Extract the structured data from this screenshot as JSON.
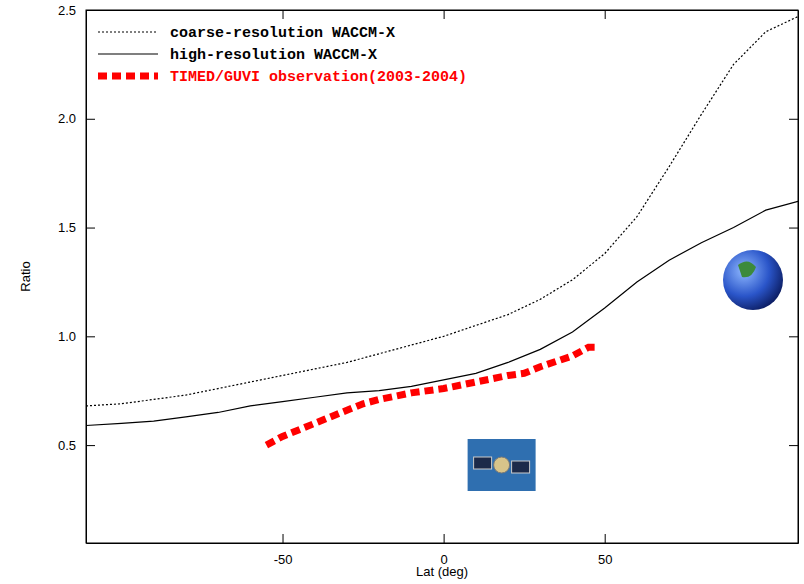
{
  "chart_data": {
    "type": "line",
    "x_label": "Lat (deg)",
    "y_label": "Ratio",
    "xlim": [
      -111,
      110
    ],
    "ylim": [
      0.05,
      2.5
    ],
    "xticks": [
      -50,
      0,
      50
    ],
    "yticks": [
      0.5,
      {
        "value": 1,
        "label": "1.0"
      },
      1.5,
      {
        "value": 2,
        "label": "2.0"
      },
      2.5
    ],
    "legend": "upper left",
    "series": [
      {
        "name": "coarse-resolution WACCM-X",
        "color": "#000000",
        "line_style": "dotted",
        "x": [
          -111,
          -100,
          -90,
          -80,
          -70,
          -60,
          -50,
          -40,
          -30,
          -20,
          -10,
          0,
          10,
          20,
          30,
          40,
          50,
          60,
          70,
          80,
          90,
          100,
          110
        ],
        "values": [
          0.68,
          0.69,
          0.71,
          0.73,
          0.76,
          0.79,
          0.82,
          0.85,
          0.88,
          0.92,
          0.96,
          1.0,
          1.05,
          1.1,
          1.17,
          1.26,
          1.38,
          1.55,
          1.78,
          2.02,
          2.25,
          2.4,
          2.47
        ]
      },
      {
        "name": "high-resolution WACCM-X",
        "color": "#000000",
        "line_style": "solid",
        "x": [
          -111,
          -100,
          -90,
          -80,
          -70,
          -60,
          -50,
          -40,
          -30,
          -20,
          -10,
          0,
          10,
          20,
          30,
          40,
          50,
          60,
          70,
          80,
          90,
          100,
          110
        ],
        "values": [
          0.59,
          0.6,
          0.61,
          0.63,
          0.65,
          0.68,
          0.7,
          0.72,
          0.74,
          0.75,
          0.77,
          0.8,
          0.83,
          0.88,
          0.94,
          1.02,
          1.13,
          1.25,
          1.35,
          1.43,
          1.5,
          1.58,
          1.62
        ]
      },
      {
        "name": "TIMED/GUVI observation(2003-2004)",
        "color": "#ff0000",
        "line_style": "dashed",
        "x": [
          -55,
          -50,
          -40,
          -30,
          -25,
          -20,
          -10,
          0,
          10,
          20,
          25,
          30,
          40,
          45,
          48
        ],
        "values": [
          0.5,
          0.54,
          0.6,
          0.66,
          0.69,
          0.71,
          0.74,
          0.76,
          0.79,
          0.82,
          0.83,
          0.86,
          0.91,
          0.95,
          0.95
        ]
      }
    ]
  }
}
